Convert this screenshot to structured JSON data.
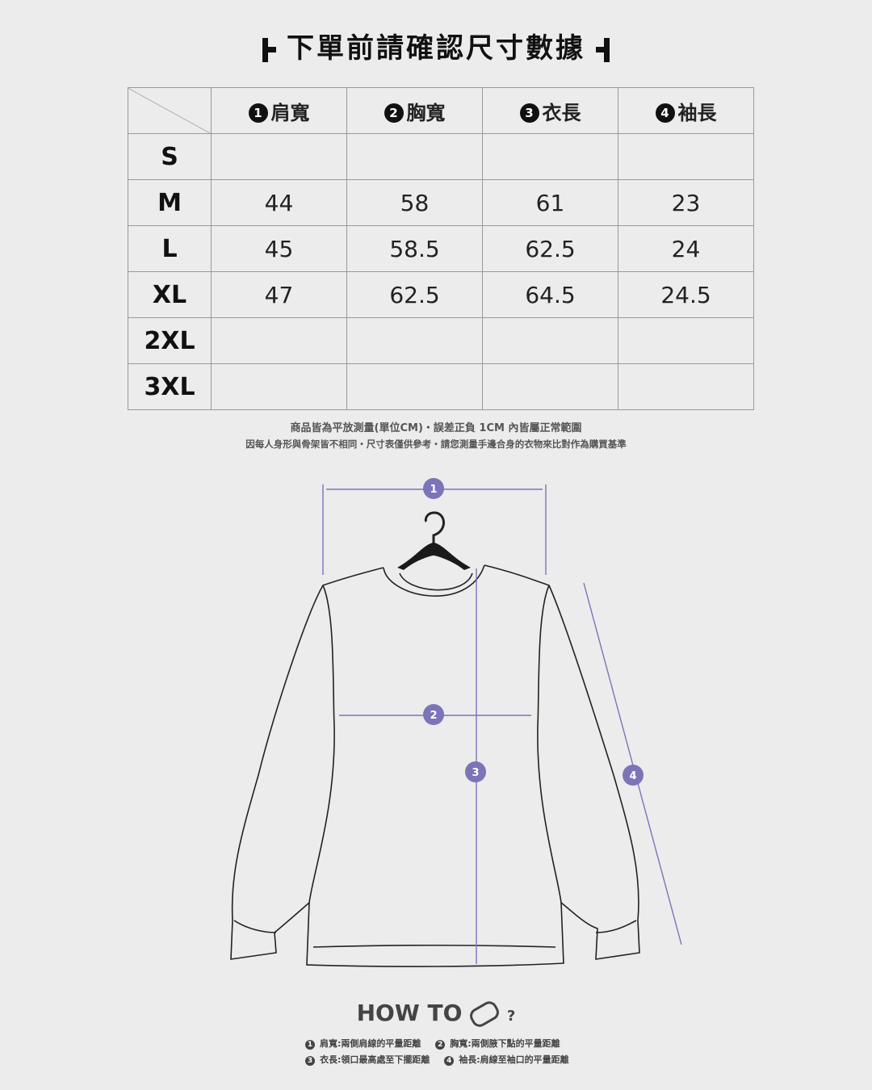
{
  "title": "下單前請確認尺寸數據",
  "table": {
    "headers": [
      {
        "num": "1",
        "label": "肩寬"
      },
      {
        "num": "2",
        "label": "胸寬"
      },
      {
        "num": "3",
        "label": "衣長"
      },
      {
        "num": "4",
        "label": "袖長"
      }
    ],
    "rows": [
      {
        "size": "S",
        "values": [
          "",
          "",
          "",
          ""
        ]
      },
      {
        "size": "M",
        "values": [
          "44",
          "58",
          "61",
          "23"
        ]
      },
      {
        "size": "L",
        "values": [
          "45",
          "58.5",
          "62.5",
          "24"
        ]
      },
      {
        "size": "XL",
        "values": [
          "47",
          "62.5",
          "64.5",
          "24.5"
        ]
      },
      {
        "size": "2XL",
        "values": [
          "",
          "",
          "",
          ""
        ]
      },
      {
        "size": "3XL",
        "values": [
          "",
          "",
          "",
          ""
        ]
      }
    ]
  },
  "notes": [
    "商品皆為平放測量(單位CM)・誤差正負 1CM 內皆屬正常範圍",
    "因每人身形與骨架皆不相同・尺寸表僅供參考・請您測量手邊合身的衣物來比對作為購買基準"
  ],
  "diagram_markers": [
    "1",
    "2",
    "3",
    "4"
  ],
  "howto": {
    "text": "HOW TO",
    "suffix": "?",
    "icon": "tape-measure-icon"
  },
  "legend": [
    {
      "num": "1",
      "text": "肩寬:兩側肩線的平量距離"
    },
    {
      "num": "2",
      "text": "胸寬:兩側腋下點的平量距離"
    },
    {
      "num": "3",
      "text": "衣長:領口最高處至下擺距離"
    },
    {
      "num": "4",
      "text": "袖長:肩線至袖口的平量距離"
    }
  ],
  "colors": {
    "accent": "#7b74b8",
    "background": "#ececec"
  }
}
